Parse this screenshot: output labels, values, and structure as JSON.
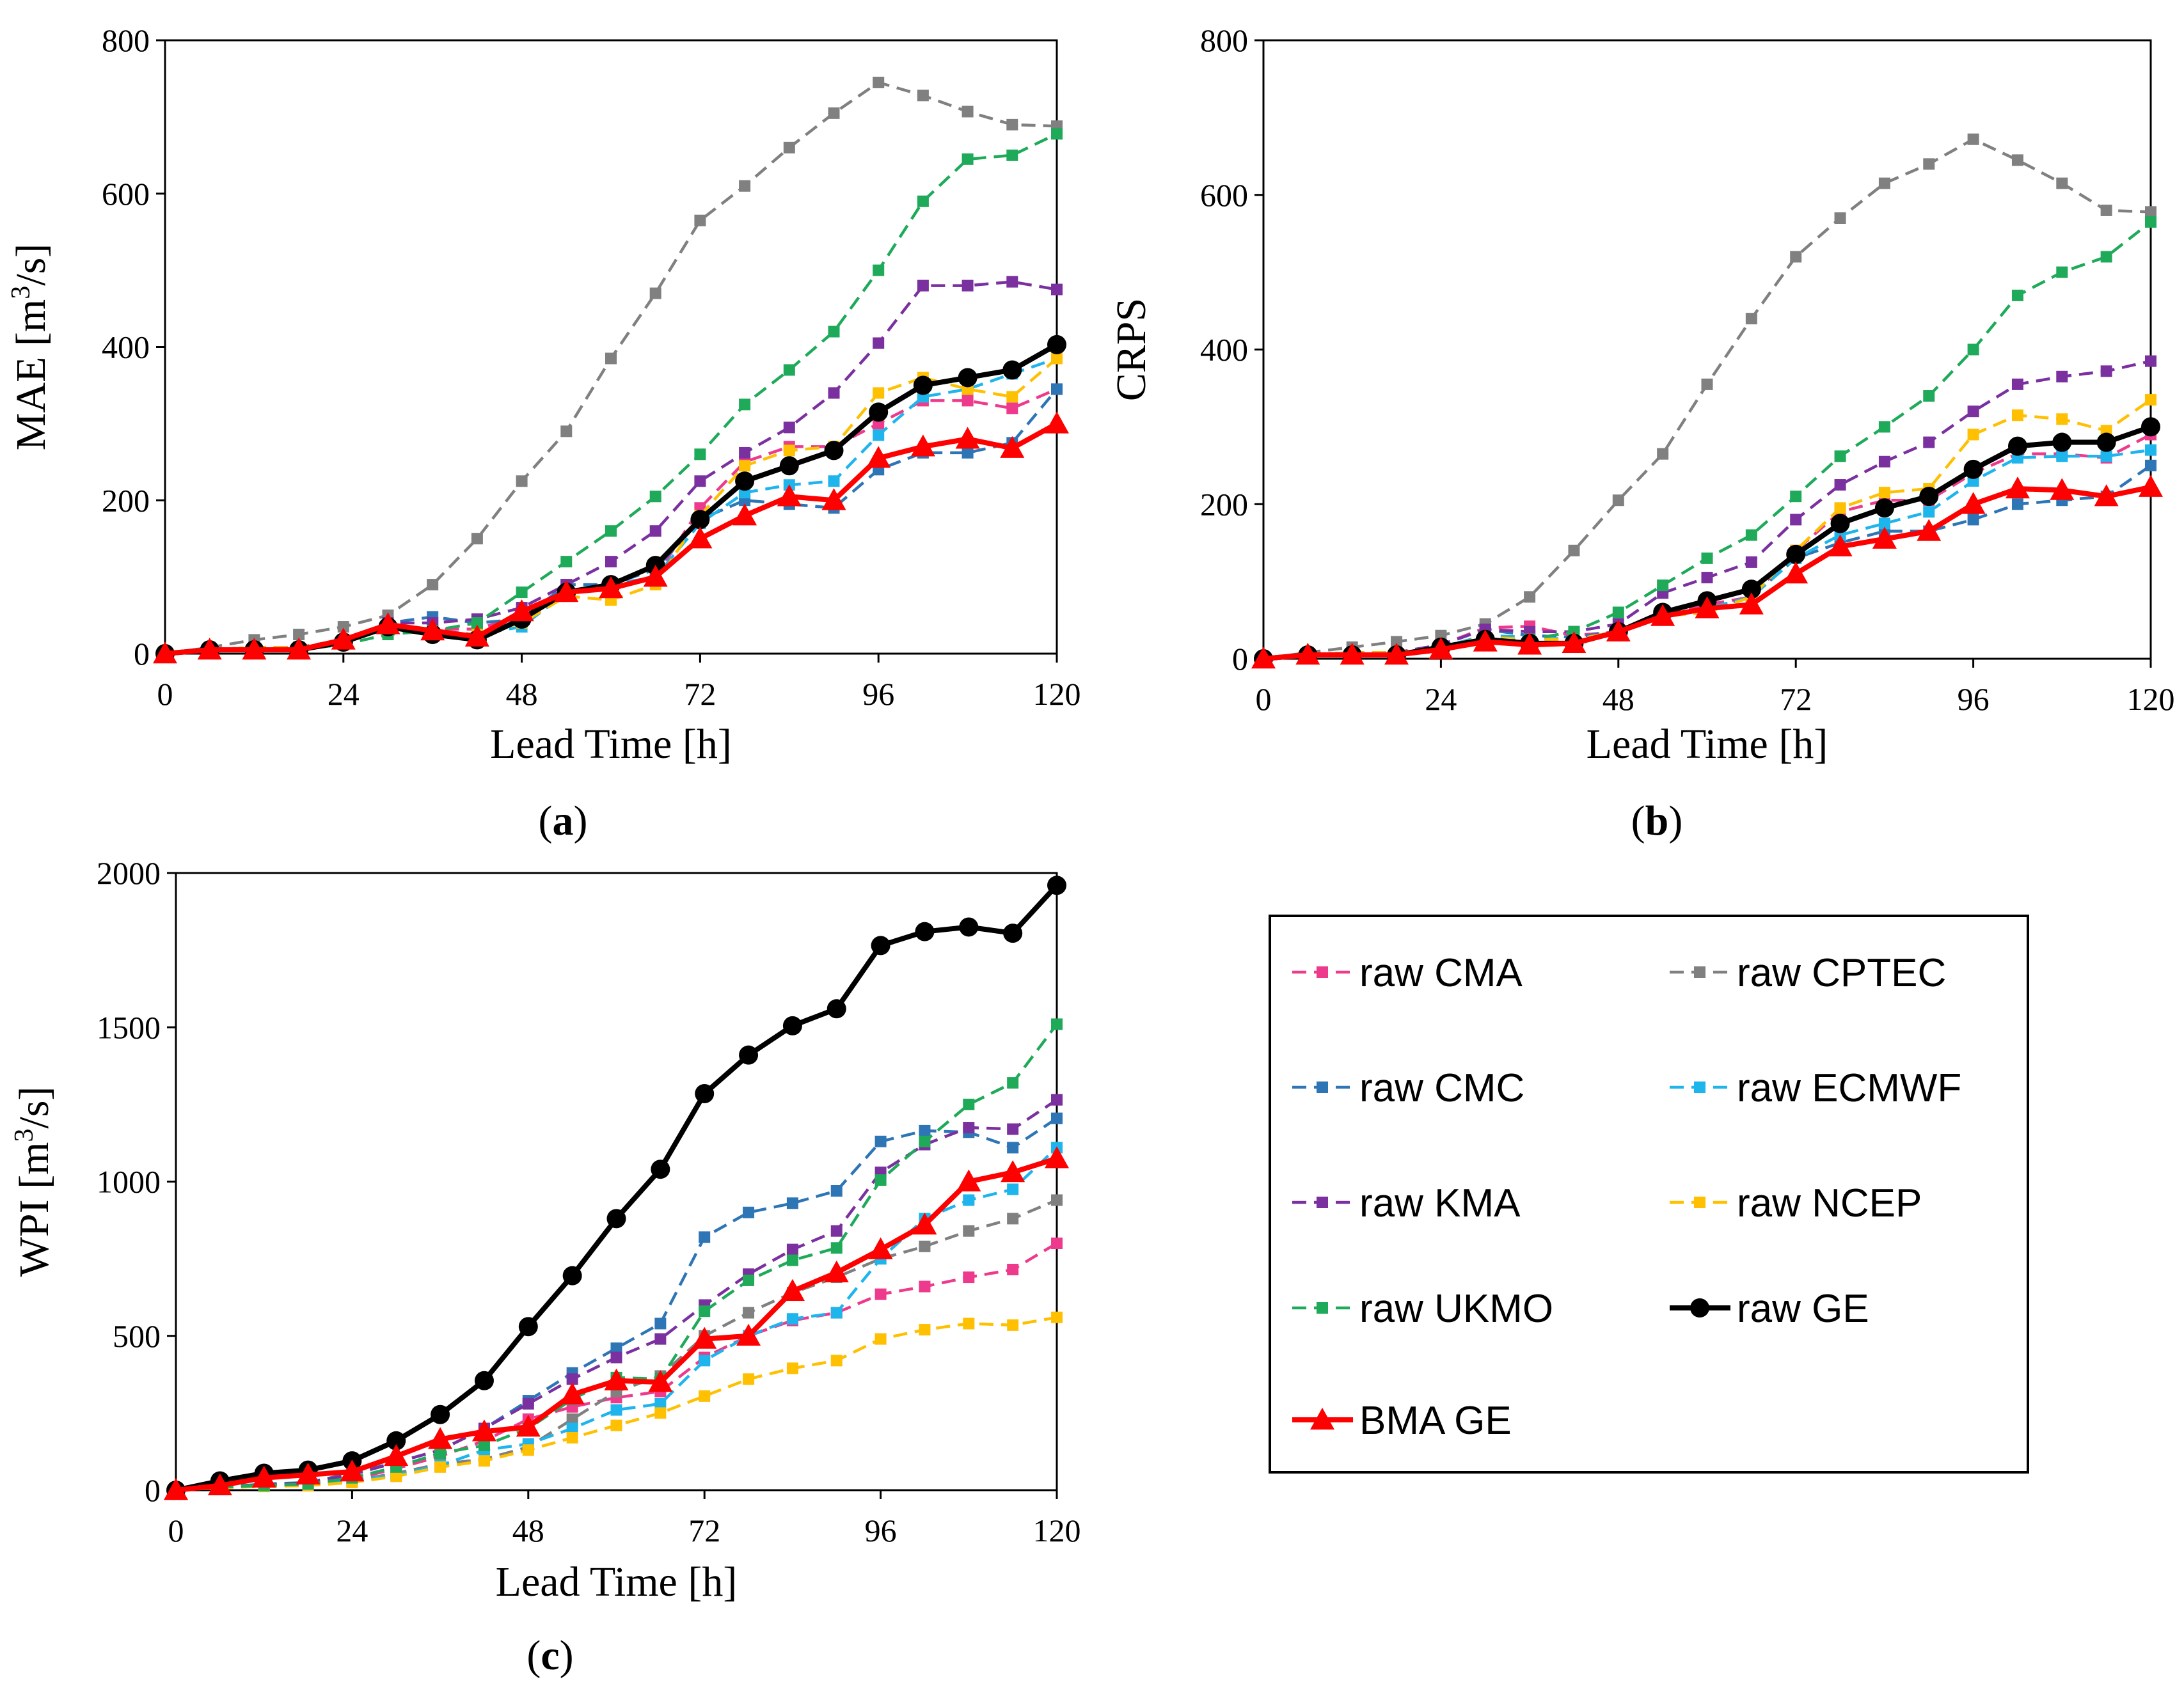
{
  "colors": {
    "raw CMA": "#ee3a8c",
    "raw CPTEC": "#808080",
    "raw CMC": "#2e75b6",
    "raw ECMWF": "#1eb4ec",
    "raw KMA": "#7b30a0",
    "raw NCEP": "#fec000",
    "raw UKMO": "#1faa5a",
    "raw GE": "#000000",
    "BMA GE": "#ff0000"
  },
  "legend": [
    "raw CMA",
    "raw CPTEC",
    "raw CMC",
    "raw ECMWF",
    "raw KMA",
    "raw NCEP",
    "raw UKMO",
    "raw GE",
    "BMA GE"
  ],
  "chart_data": [
    {
      "type": "line",
      "panel_label": "a",
      "xlabel": "Lead Time [h]",
      "ylabel": "MAE  [m",
      "ylabel_sup": "3",
      "ylabel_end": "/s]",
      "xlim": [
        0,
        120
      ],
      "ylim": [
        0,
        800
      ],
      "xticks": [
        0,
        24,
        48,
        72,
        96,
        120
      ],
      "yticks": [
        0,
        200,
        400,
        600,
        800
      ],
      "x": [
        0,
        6,
        12,
        18,
        24,
        30,
        36,
        42,
        48,
        54,
        60,
        66,
        72,
        78,
        84,
        90,
        96,
        102,
        108,
        114,
        120
      ],
      "series": [
        {
          "name": "raw CMA",
          "values": [
            0,
            5,
            8,
            8,
            18,
            35,
            32,
            32,
            50,
            80,
            85,
            100,
            190,
            250,
            270,
            270,
            300,
            330,
            330,
            320,
            345
          ]
        },
        {
          "name": "raw CPTEC",
          "values": [
            0,
            8,
            18,
            25,
            35,
            50,
            90,
            150,
            225,
            290,
            385,
            470,
            565,
            610,
            660,
            705,
            745,
            728,
            707,
            690,
            688
          ]
        },
        {
          "name": "raw CMC",
          "values": [
            0,
            5,
            8,
            8,
            18,
            40,
            48,
            40,
            45,
            90,
            90,
            110,
            175,
            200,
            195,
            190,
            240,
            262,
            262,
            275,
            345
          ]
        },
        {
          "name": "raw ECMWF",
          "values": [
            0,
            5,
            8,
            8,
            15,
            35,
            30,
            25,
            35,
            80,
            90,
            100,
            170,
            210,
            220,
            225,
            285,
            335,
            345,
            365,
            385
          ]
        },
        {
          "name": "raw KMA",
          "values": [
            0,
            5,
            8,
            8,
            18,
            40,
            40,
            45,
            60,
            90,
            120,
            160,
            225,
            262,
            295,
            340,
            405,
            480,
            480,
            485,
            475
          ]
        },
        {
          "name": "raw NCEP",
          "values": [
            0,
            5,
            8,
            8,
            15,
            35,
            28,
            25,
            40,
            75,
            70,
            90,
            180,
            245,
            265,
            270,
            340,
            360,
            345,
            335,
            385
          ]
        },
        {
          "name": "raw UKMO",
          "values": [
            0,
            3,
            5,
            5,
            12,
            25,
            30,
            40,
            80,
            120,
            160,
            205,
            260,
            325,
            370,
            420,
            500,
            590,
            645,
            650,
            678
          ]
        },
        {
          "name": "raw GE",
          "values": [
            0,
            5,
            5,
            5,
            15,
            35,
            25,
            18,
            45,
            80,
            90,
            115,
            175,
            225,
            245,
            265,
            315,
            350,
            360,
            370,
            403
          ]
        },
        {
          "name": "BMA GE",
          "values": [
            0,
            5,
            5,
            5,
            18,
            38,
            30,
            22,
            55,
            80,
            85,
            100,
            150,
            180,
            205,
            200,
            255,
            270,
            280,
            268,
            300
          ]
        }
      ]
    },
    {
      "type": "line",
      "panel_label": "b",
      "xlabel": "Lead Time [h]",
      "ylabel": "CRPS",
      "xlim": [
        0,
        120
      ],
      "ylim": [
        0,
        800
      ],
      "xticks": [
        0,
        24,
        48,
        72,
        96,
        120
      ],
      "yticks": [
        0,
        200,
        400,
        600,
        800
      ],
      "x": [
        0,
        6,
        12,
        18,
        24,
        30,
        36,
        42,
        48,
        54,
        60,
        66,
        72,
        78,
        84,
        90,
        96,
        102,
        108,
        114,
        120
      ],
      "series": [
        {
          "name": "raw CMA",
          "values": [
            0,
            5,
            8,
            8,
            18,
            40,
            42,
            30,
            35,
            60,
            70,
            80,
            140,
            190,
            205,
            205,
            240,
            265,
            265,
            260,
            290
          ]
        },
        {
          "name": "raw CPTEC",
          "values": [
            0,
            8,
            15,
            22,
            30,
            45,
            80,
            140,
            205,
            265,
            355,
            440,
            520,
            570,
            615,
            640,
            672,
            645,
            615,
            580,
            578
          ]
        },
        {
          "name": "raw CMC",
          "values": [
            0,
            5,
            8,
            8,
            18,
            38,
            30,
            28,
            35,
            55,
            65,
            80,
            130,
            150,
            165,
            165,
            180,
            200,
            205,
            210,
            250
          ]
        },
        {
          "name": "raw ECMWF",
          "values": [
            0,
            5,
            8,
            8,
            15,
            30,
            28,
            25,
            35,
            55,
            65,
            80,
            130,
            160,
            175,
            190,
            230,
            260,
            262,
            262,
            270
          ]
        },
        {
          "name": "raw KMA",
          "values": [
            0,
            5,
            8,
            8,
            18,
            38,
            35,
            35,
            45,
            85,
            105,
            125,
            180,
            225,
            255,
            280,
            320,
            355,
            365,
            372,
            385
          ]
        },
        {
          "name": "raw NCEP",
          "values": [
            0,
            5,
            8,
            8,
            15,
            28,
            25,
            25,
            35,
            55,
            60,
            80,
            140,
            195,
            215,
            220,
            290,
            315,
            310,
            295,
            335
          ]
        },
        {
          "name": "raw UKMO",
          "values": [
            0,
            3,
            5,
            5,
            10,
            22,
            25,
            35,
            60,
            95,
            130,
            160,
            210,
            262,
            300,
            340,
            400,
            470,
            500,
            520,
            565
          ]
        },
        {
          "name": "raw GE",
          "values": [
            0,
            5,
            5,
            5,
            15,
            25,
            20,
            20,
            35,
            60,
            75,
            90,
            135,
            175,
            195,
            210,
            245,
            275,
            280,
            280,
            300
          ]
        },
        {
          "name": "BMA GE",
          "values": [
            0,
            5,
            5,
            5,
            12,
            22,
            18,
            20,
            35,
            55,
            65,
            70,
            110,
            145,
            155,
            165,
            200,
            220,
            218,
            210,
            222
          ]
        }
      ]
    },
    {
      "type": "line",
      "panel_label": "c",
      "xlabel": "Lead Time [h]",
      "ylabel": "WPI  [m",
      "ylabel_sup": "3",
      "ylabel_end": "/s]",
      "xlim": [
        0,
        120
      ],
      "ylim": [
        0,
        2000
      ],
      "xticks": [
        0,
        24,
        48,
        72,
        96,
        120
      ],
      "yticks": [
        0,
        500,
        1000,
        1500,
        2000
      ],
      "x": [
        0,
        6,
        12,
        18,
        24,
        30,
        36,
        42,
        48,
        54,
        60,
        66,
        72,
        78,
        84,
        90,
        96,
        102,
        108,
        114,
        120
      ],
      "series": [
        {
          "name": "raw CMA",
          "values": [
            0,
            10,
            15,
            15,
            35,
            70,
            110,
            160,
            230,
            270,
            300,
            320,
            430,
            500,
            550,
            575,
            635,
            660,
            690,
            715,
            800
          ]
        },
        {
          "name": "raw CPTEC",
          "values": [
            0,
            10,
            15,
            20,
            30,
            55,
            85,
            100,
            140,
            230,
            320,
            370,
            500,
            575,
            640,
            690,
            750,
            790,
            840,
            880,
            940
          ]
        },
        {
          "name": "raw CMC",
          "values": [
            0,
            10,
            20,
            25,
            55,
            90,
            130,
            200,
            290,
            380,
            460,
            540,
            820,
            900,
            930,
            970,
            1130,
            1165,
            1160,
            1110,
            1205
          ]
        },
        {
          "name": "raw ECMWF",
          "values": [
            0,
            10,
            15,
            20,
            30,
            50,
            80,
            130,
            150,
            200,
            260,
            280,
            420,
            500,
            555,
            575,
            750,
            880,
            940,
            975,
            1110
          ]
        },
        {
          "name": "raw KMA",
          "values": [
            0,
            10,
            15,
            25,
            50,
            90,
            130,
            200,
            280,
            360,
            430,
            490,
            600,
            700,
            780,
            840,
            1030,
            1120,
            1175,
            1170,
            1265
          ]
        },
        {
          "name": "raw NCEP",
          "values": [
            0,
            8,
            12,
            15,
            25,
            45,
            75,
            95,
            130,
            170,
            210,
            250,
            305,
            360,
            395,
            420,
            490,
            520,
            540,
            535,
            560
          ]
        },
        {
          "name": "raw UKMO",
          "values": [
            0,
            10,
            15,
            20,
            40,
            75,
            120,
            145,
            200,
            295,
            365,
            360,
            580,
            680,
            745,
            785,
            1005,
            1130,
            1250,
            1320,
            1510
          ]
        },
        {
          "name": "raw GE",
          "values": [
            0,
            30,
            55,
            65,
            95,
            160,
            245,
            355,
            530,
            695,
            880,
            1040,
            1285,
            1410,
            1505,
            1560,
            1765,
            1810,
            1825,
            1805,
            1960
          ]
        },
        {
          "name": "BMA GE",
          "values": [
            0,
            15,
            40,
            50,
            60,
            110,
            165,
            190,
            205,
            310,
            355,
            350,
            490,
            500,
            645,
            705,
            780,
            860,
            1000,
            1030,
            1075
          ]
        }
      ]
    }
  ]
}
